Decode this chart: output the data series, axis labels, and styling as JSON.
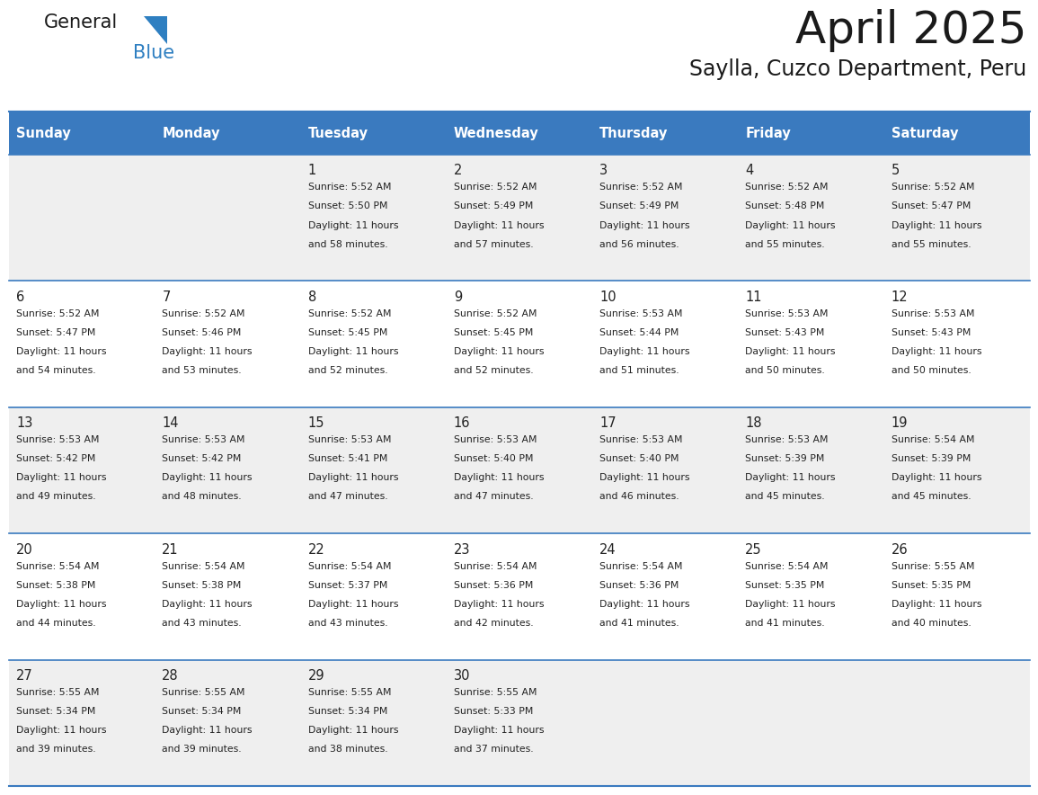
{
  "title": "April 2025",
  "subtitle": "Saylla, Cuzco Department, Peru",
  "header_bg_color": "#3a7abf",
  "header_text_color": "#ffffff",
  "day_names": [
    "Sunday",
    "Monday",
    "Tuesday",
    "Wednesday",
    "Thursday",
    "Friday",
    "Saturday"
  ],
  "row_bg_even": "#efefef",
  "row_bg_odd": "#ffffff",
  "cell_text_color": "#222222",
  "grid_line_color": "#3a7abf",
  "logo_text_color": "#222222",
  "logo_blue_color": "#2e7fc1",
  "days": [
    {
      "day": 1,
      "col": 2,
      "row": 0,
      "sunrise": "5:52 AM",
      "sunset": "5:50 PM",
      "daylight_hrs": 11,
      "daylight_min": 58
    },
    {
      "day": 2,
      "col": 3,
      "row": 0,
      "sunrise": "5:52 AM",
      "sunset": "5:49 PM",
      "daylight_hrs": 11,
      "daylight_min": 57
    },
    {
      "day": 3,
      "col": 4,
      "row": 0,
      "sunrise": "5:52 AM",
      "sunset": "5:49 PM",
      "daylight_hrs": 11,
      "daylight_min": 56
    },
    {
      "day": 4,
      "col": 5,
      "row": 0,
      "sunrise": "5:52 AM",
      "sunset": "5:48 PM",
      "daylight_hrs": 11,
      "daylight_min": 55
    },
    {
      "day": 5,
      "col": 6,
      "row": 0,
      "sunrise": "5:52 AM",
      "sunset": "5:47 PM",
      "daylight_hrs": 11,
      "daylight_min": 55
    },
    {
      "day": 6,
      "col": 0,
      "row": 1,
      "sunrise": "5:52 AM",
      "sunset": "5:47 PM",
      "daylight_hrs": 11,
      "daylight_min": 54
    },
    {
      "day": 7,
      "col": 1,
      "row": 1,
      "sunrise": "5:52 AM",
      "sunset": "5:46 PM",
      "daylight_hrs": 11,
      "daylight_min": 53
    },
    {
      "day": 8,
      "col": 2,
      "row": 1,
      "sunrise": "5:52 AM",
      "sunset": "5:45 PM",
      "daylight_hrs": 11,
      "daylight_min": 52
    },
    {
      "day": 9,
      "col": 3,
      "row": 1,
      "sunrise": "5:52 AM",
      "sunset": "5:45 PM",
      "daylight_hrs": 11,
      "daylight_min": 52
    },
    {
      "day": 10,
      "col": 4,
      "row": 1,
      "sunrise": "5:53 AM",
      "sunset": "5:44 PM",
      "daylight_hrs": 11,
      "daylight_min": 51
    },
    {
      "day": 11,
      "col": 5,
      "row": 1,
      "sunrise": "5:53 AM",
      "sunset": "5:43 PM",
      "daylight_hrs": 11,
      "daylight_min": 50
    },
    {
      "day": 12,
      "col": 6,
      "row": 1,
      "sunrise": "5:53 AM",
      "sunset": "5:43 PM",
      "daylight_hrs": 11,
      "daylight_min": 50
    },
    {
      "day": 13,
      "col": 0,
      "row": 2,
      "sunrise": "5:53 AM",
      "sunset": "5:42 PM",
      "daylight_hrs": 11,
      "daylight_min": 49
    },
    {
      "day": 14,
      "col": 1,
      "row": 2,
      "sunrise": "5:53 AM",
      "sunset": "5:42 PM",
      "daylight_hrs": 11,
      "daylight_min": 48
    },
    {
      "day": 15,
      "col": 2,
      "row": 2,
      "sunrise": "5:53 AM",
      "sunset": "5:41 PM",
      "daylight_hrs": 11,
      "daylight_min": 47
    },
    {
      "day": 16,
      "col": 3,
      "row": 2,
      "sunrise": "5:53 AM",
      "sunset": "5:40 PM",
      "daylight_hrs": 11,
      "daylight_min": 47
    },
    {
      "day": 17,
      "col": 4,
      "row": 2,
      "sunrise": "5:53 AM",
      "sunset": "5:40 PM",
      "daylight_hrs": 11,
      "daylight_min": 46
    },
    {
      "day": 18,
      "col": 5,
      "row": 2,
      "sunrise": "5:53 AM",
      "sunset": "5:39 PM",
      "daylight_hrs": 11,
      "daylight_min": 45
    },
    {
      "day": 19,
      "col": 6,
      "row": 2,
      "sunrise": "5:54 AM",
      "sunset": "5:39 PM",
      "daylight_hrs": 11,
      "daylight_min": 45
    },
    {
      "day": 20,
      "col": 0,
      "row": 3,
      "sunrise": "5:54 AM",
      "sunset": "5:38 PM",
      "daylight_hrs": 11,
      "daylight_min": 44
    },
    {
      "day": 21,
      "col": 1,
      "row": 3,
      "sunrise": "5:54 AM",
      "sunset": "5:38 PM",
      "daylight_hrs": 11,
      "daylight_min": 43
    },
    {
      "day": 22,
      "col": 2,
      "row": 3,
      "sunrise": "5:54 AM",
      "sunset": "5:37 PM",
      "daylight_hrs": 11,
      "daylight_min": 43
    },
    {
      "day": 23,
      "col": 3,
      "row": 3,
      "sunrise": "5:54 AM",
      "sunset": "5:36 PM",
      "daylight_hrs": 11,
      "daylight_min": 42
    },
    {
      "day": 24,
      "col": 4,
      "row": 3,
      "sunrise": "5:54 AM",
      "sunset": "5:36 PM",
      "daylight_hrs": 11,
      "daylight_min": 41
    },
    {
      "day": 25,
      "col": 5,
      "row": 3,
      "sunrise": "5:54 AM",
      "sunset": "5:35 PM",
      "daylight_hrs": 11,
      "daylight_min": 41
    },
    {
      "day": 26,
      "col": 6,
      "row": 3,
      "sunrise": "5:55 AM",
      "sunset": "5:35 PM",
      "daylight_hrs": 11,
      "daylight_min": 40
    },
    {
      "day": 27,
      "col": 0,
      "row": 4,
      "sunrise": "5:55 AM",
      "sunset": "5:34 PM",
      "daylight_hrs": 11,
      "daylight_min": 39
    },
    {
      "day": 28,
      "col": 1,
      "row": 4,
      "sunrise": "5:55 AM",
      "sunset": "5:34 PM",
      "daylight_hrs": 11,
      "daylight_min": 39
    },
    {
      "day": 29,
      "col": 2,
      "row": 4,
      "sunrise": "5:55 AM",
      "sunset": "5:34 PM",
      "daylight_hrs": 11,
      "daylight_min": 38
    },
    {
      "day": 30,
      "col": 3,
      "row": 4,
      "sunrise": "5:55 AM",
      "sunset": "5:33 PM",
      "daylight_hrs": 11,
      "daylight_min": 37
    }
  ]
}
